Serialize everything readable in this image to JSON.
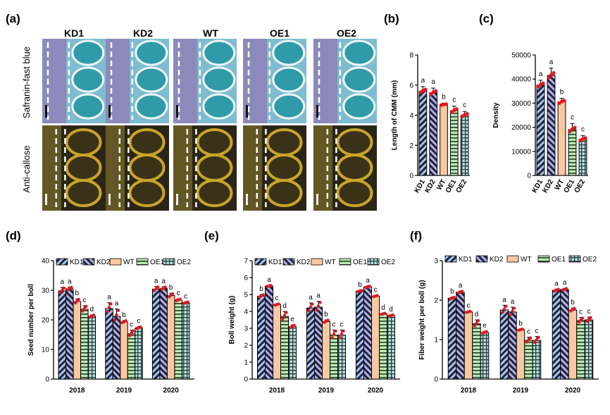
{
  "colors": {
    "kd": "#a8c4f0",
    "wt": "#f8c8a0",
    "oe1": "#b9ecb0",
    "oe2": "#b3e0de",
    "dot": "#e8141c",
    "stain_blue": "#6fb4c8",
    "stain_purple": "#8a5fa0",
    "callose_dark": "#2a2516",
    "callose_gold": "#c9a42a"
  },
  "images": {
    "panel_label": "(a)",
    "columns": [
      "KD1",
      "KD2",
      "WT",
      "OE1",
      "OE2"
    ],
    "rows": [
      "Safranin-fast blue",
      "Anti-callose"
    ]
  },
  "legend": [
    "KD1",
    "KD2",
    "WT",
    "OE1",
    "OE2"
  ],
  "chart_data": [
    {
      "id": "b",
      "panel_label": "(b)",
      "type": "bar",
      "categories": [
        "KD1",
        "KD2",
        "WT",
        "OE1",
        "OE2"
      ],
      "values": [
        5.6,
        5.5,
        4.7,
        4.3,
        4.0
      ],
      "errors": [
        0.3,
        0.3,
        0.1,
        0.3,
        0.25
      ],
      "letters": [
        "a",
        "a",
        "b",
        "c",
        "c"
      ],
      "ylabel": "Length of CMM (mm)",
      "ylim": [
        0,
        8
      ],
      "yticks": [
        0,
        2,
        4,
        6,
        8
      ]
    },
    {
      "id": "c",
      "panel_label": "(c)",
      "type": "bar",
      "categories": [
        "KD1",
        "KD2",
        "WT",
        "OE1",
        "OE2"
      ],
      "values": [
        37500,
        41500,
        30500,
        19000,
        15000
      ],
      "errors": [
        2000,
        3000,
        1500,
        2500,
        1500
      ],
      "letters": [
        "a",
        "a",
        "b",
        "c",
        "c"
      ],
      "ylabel": "Density",
      "ylim": [
        0,
        50000
      ],
      "yticks": [
        0,
        10000,
        20000,
        30000,
        40000,
        50000
      ]
    },
    {
      "id": "d",
      "panel_label": "(d)",
      "type": "bar",
      "categories": [
        "2018",
        "2019",
        "2020"
      ],
      "series": [
        {
          "name": "KD1",
          "values": [
            29.8,
            23.8,
            30.4
          ],
          "errors": [
            1.2,
            2.0,
            0.9
          ],
          "letters": [
            "a",
            "a",
            "a"
          ]
        },
        {
          "name": "KD2",
          "values": [
            30.5,
            21.2,
            30.6
          ],
          "errors": [
            0.6,
            2.5,
            0.6
          ],
          "letters": [
            "a",
            "a",
            "a"
          ]
        },
        {
          "name": "WT",
          "values": [
            26.2,
            19.3,
            28.2
          ],
          "errors": [
            0.9,
            0.5,
            0.8
          ],
          "letters": [
            "b",
            "b",
            "b"
          ]
        },
        {
          "name": "OE1",
          "values": [
            23.6,
            15.3,
            26.7
          ],
          "errors": [
            1.2,
            1.2,
            0.4
          ],
          "letters": [
            "c",
            "c",
            "c"
          ]
        },
        {
          "name": "OE2",
          "values": [
            21.2,
            17.3,
            25.8
          ],
          "errors": [
            0.5,
            0.4,
            0.3
          ],
          "letters": [
            "d",
            "c",
            "c"
          ]
        }
      ],
      "ylabel": "Seed number per boll",
      "ylim": [
        0,
        40
      ],
      "yticks": [
        0,
        10,
        20,
        30,
        40
      ]
    },
    {
      "id": "e",
      "panel_label": "(e)",
      "type": "bar",
      "categories": [
        "2018",
        "2019",
        "2020"
      ],
      "series": [
        {
          "name": "KD1",
          "values": [
            4.9,
            4.2,
            5.2
          ],
          "errors": [
            0.1,
            0.3,
            0.05
          ],
          "letters": [
            "b",
            "a",
            "b"
          ]
        },
        {
          "name": "KD2",
          "values": [
            5.5,
            4.25,
            5.45
          ],
          "errors": [
            0.05,
            0.35,
            0.05
          ],
          "letters": [
            "a",
            "a",
            "a"
          ]
        },
        {
          "name": "WT",
          "values": [
            4.4,
            3.4,
            4.9
          ],
          "errors": [
            0.05,
            0.1,
            0.05
          ],
          "letters": [
            "c",
            "b",
            "c"
          ]
        },
        {
          "name": "OE1",
          "values": [
            3.7,
            2.6,
            3.85
          ],
          "errors": [
            0.3,
            0.3,
            0.05
          ],
          "letters": [
            "d",
            "c",
            "d"
          ]
        },
        {
          "name": "OE2",
          "values": [
            3.1,
            2.6,
            3.75
          ],
          "errors": [
            0.1,
            0.3,
            0.05
          ],
          "letters": [
            "e",
            "c",
            "d"
          ]
        }
      ],
      "ylabel": "Boll weight (g)",
      "ylim": [
        0,
        7
      ],
      "yticks": [
        0,
        1,
        2,
        3,
        4,
        5,
        6,
        7
      ]
    },
    {
      "id": "f",
      "panel_label": "(f)",
      "type": "bar",
      "categories": [
        "2018",
        "2019",
        "2020"
      ],
      "series": [
        {
          "name": "KD1",
          "values": [
            2.05,
            1.75,
            2.25
          ],
          "errors": [
            0.03,
            0.12,
            0.03
          ],
          "letters": [
            "b",
            "a",
            "a"
          ]
        },
        {
          "name": "KD2",
          "values": [
            2.2,
            1.7,
            2.27
          ],
          "errors": [
            0.03,
            0.12,
            0.03
          ],
          "letters": [
            "a",
            "a",
            "a"
          ]
        },
        {
          "name": "WT",
          "values": [
            1.7,
            1.25,
            1.75
          ],
          "errors": [
            0.02,
            0.02,
            0.05
          ],
          "letters": [
            "c",
            "b",
            "b"
          ]
        },
        {
          "name": "OE1",
          "values": [
            1.4,
            0.98,
            1.48
          ],
          "errors": [
            0.1,
            0.08,
            0.08
          ],
          "letters": [
            "d",
            "c",
            "c"
          ]
        },
        {
          "name": "OE2",
          "values": [
            1.18,
            0.98,
            1.5
          ],
          "errors": [
            0.03,
            0.1,
            0.07
          ],
          "letters": [
            "e",
            "c",
            "c"
          ]
        }
      ],
      "ylabel": "Fiber weight per boll (g)",
      "ylim": [
        0,
        3
      ],
      "yticks": [
        0,
        1,
        2,
        3
      ]
    }
  ]
}
